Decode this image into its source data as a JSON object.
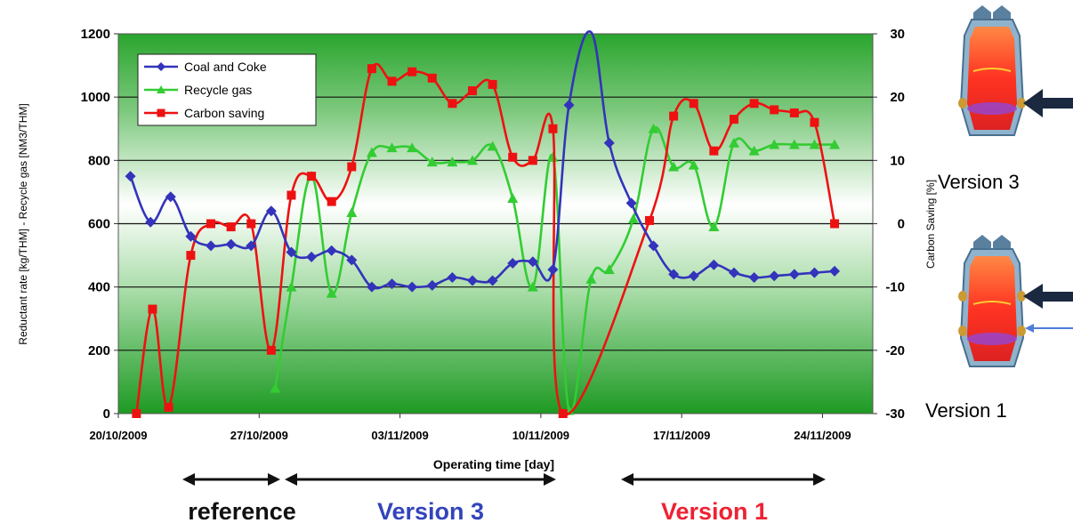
{
  "chart_data": {
    "type": "line",
    "xlabel": "Operating time [day]",
    "ylabel": "Reductant rate [kg/THM] - Recycle gas [NM3/THM]",
    "y2label": "Carbon Saving [%]",
    "x_tick_labels": [
      "20/10/2009",
      "27/10/2009",
      "03/11/2009",
      "10/11/2009",
      "17/11/2009",
      "24/11/2009"
    ],
    "x_tick_days": [
      0,
      7,
      14,
      21,
      28,
      35
    ],
    "xlim": [
      0,
      37.5
    ],
    "ylim": [
      0,
      1200
    ],
    "y2lim": [
      -30,
      30
    ],
    "y_ticks": [
      0,
      200,
      400,
      600,
      800,
      1000,
      1200
    ],
    "y2_ticks": [
      -30,
      -20,
      -10,
      0,
      10,
      20,
      30
    ],
    "grid": true,
    "legend_position": "top-left",
    "series": [
      {
        "name": "Coal and Coke",
        "axis": "left",
        "color": "#3333bb",
        "marker": "diamond",
        "x": [
          0.6,
          1.6,
          2.6,
          3.6,
          4.6,
          5.6,
          6.6,
          7.6,
          8.6,
          9.6,
          10.6,
          11.6,
          12.6,
          13.6,
          14.6,
          15.6,
          16.6,
          17.6,
          18.6,
          19.6,
          20.6,
          21.6,
          22.4,
          23.5,
          24.4,
          25.5,
          26.6,
          27.6,
          28.6,
          29.6,
          30.6,
          31.6,
          32.6,
          33.6,
          34.6,
          35.6
        ],
        "y": [
          750,
          605,
          685,
          560,
          530,
          535,
          530,
          640,
          510,
          495,
          515,
          485,
          400,
          410,
          400,
          405,
          430,
          420,
          420,
          475,
          480,
          455,
          975,
          1205,
          855,
          665,
          530,
          440,
          435,
          470,
          445,
          430,
          435,
          440,
          445,
          450
        ]
      },
      {
        "name": "Recycle gas",
        "axis": "left",
        "color": "#33cc33",
        "marker": "triangle",
        "x": [
          7.8,
          8.6,
          9.6,
          10.6,
          11.6,
          12.6,
          13.6,
          14.6,
          15.6,
          16.6,
          17.6,
          18.6,
          19.6,
          20.6,
          21.6,
          22.4,
          23.5,
          24.4,
          25.6,
          26.6,
          27.6,
          28.6,
          29.6,
          30.6,
          31.6,
          32.6,
          33.6,
          34.6,
          35.6
        ],
        "y": [
          80,
          400,
          750,
          380,
          635,
          825,
          840,
          840,
          795,
          795,
          800,
          845,
          680,
          400,
          810,
          10,
          425,
          455,
          615,
          900,
          780,
          785,
          590,
          855,
          830,
          850,
          850,
          850,
          850
        ]
      },
      {
        "name": "Carbon saving",
        "axis": "right",
        "color": "#ee1111",
        "marker": "square",
        "x": [
          0.9,
          1.7,
          2.5,
          3.6,
          4.6,
          5.6,
          6.6,
          7.6,
          8.6,
          9.6,
          10.6,
          11.6,
          12.6,
          13.6,
          14.6,
          15.6,
          16.6,
          17.6,
          18.6,
          19.6,
          20.6,
          21.6,
          22.1,
          26.4,
          27.6,
          28.6,
          29.6,
          30.6,
          31.6,
          32.6,
          33.6,
          34.6,
          35.6
        ],
        "y": [
          -30,
          -13.5,
          -29,
          -5,
          0,
          -0.5,
          0,
          -20,
          4.5,
          7.5,
          3.5,
          9,
          24.5,
          22.5,
          24,
          23,
          19,
          21,
          22,
          10.5,
          10,
          15,
          -30,
          0.5,
          17,
          19,
          11.5,
          16.5,
          19,
          18,
          17.5,
          16,
          0
        ]
      }
    ]
  },
  "annotations": {
    "reference_label": "reference",
    "version3_label": "Version 3",
    "version1_label": "Version 1",
    "side_version3": "Version 3",
    "side_version1": "Version 1",
    "colors": {
      "reference": "#111111",
      "version3": "#3344bb",
      "version1": "#ee2233"
    }
  }
}
